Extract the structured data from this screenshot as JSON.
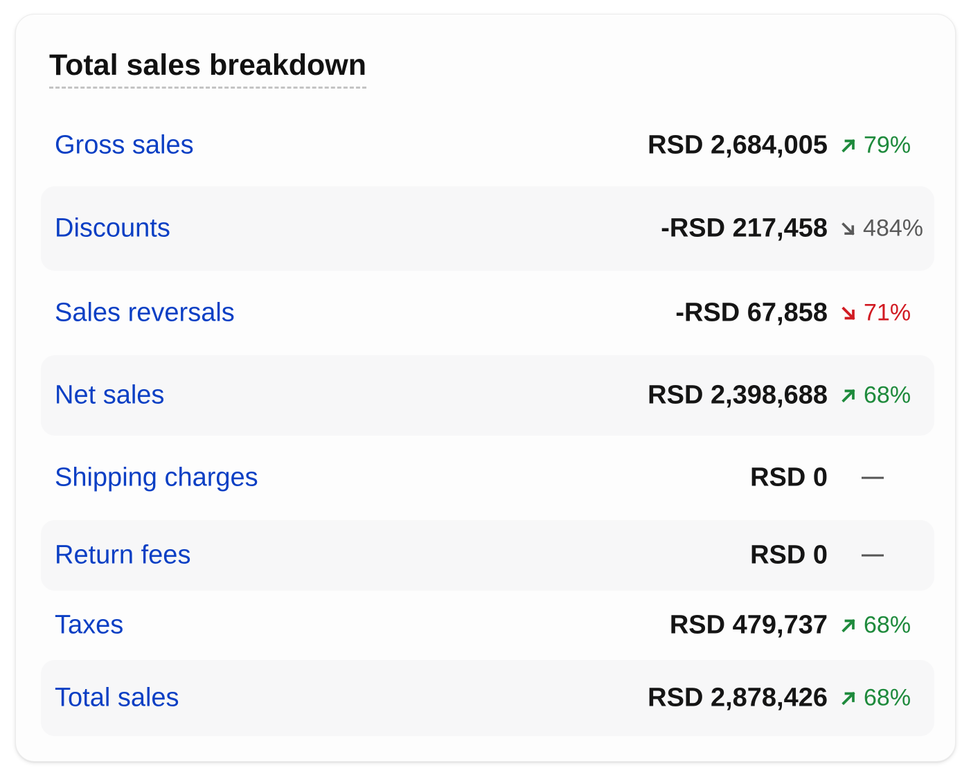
{
  "card": {
    "title": "Total sales breakdown"
  },
  "rows": [
    {
      "label": "Gross sales",
      "value": "RSD 2,684,005",
      "change": "79%",
      "trend": "up"
    },
    {
      "label": "Discounts",
      "value": "-RSD 217,458",
      "change": "484%",
      "trend": "down-gray"
    },
    {
      "label": "Sales reversals",
      "value": "-RSD 67,858",
      "change": "71%",
      "trend": "down-red"
    },
    {
      "label": "Net sales",
      "value": "RSD 2,398,688",
      "change": "68%",
      "trend": "up"
    },
    {
      "label": "Shipping charges",
      "value": "RSD 0",
      "change": "",
      "trend": "none"
    },
    {
      "label": "Return fees",
      "value": "RSD 0",
      "change": "",
      "trend": "none"
    },
    {
      "label": "Taxes",
      "value": "RSD 479,737",
      "change": "68%",
      "trend": "up"
    },
    {
      "label": "Total sales",
      "value": "RSD 2,878,426",
      "change": "68%",
      "trend": "up"
    }
  ],
  "colors": {
    "label_link": "#0b3fc4",
    "trend_up": "#1e8a3c",
    "trend_down_red": "#d11a22",
    "trend_down_gray": "#5a5a5a"
  },
  "icons": {
    "up": "arrow-up-right-icon",
    "down": "arrow-down-right-icon",
    "none": "dash-icon"
  }
}
